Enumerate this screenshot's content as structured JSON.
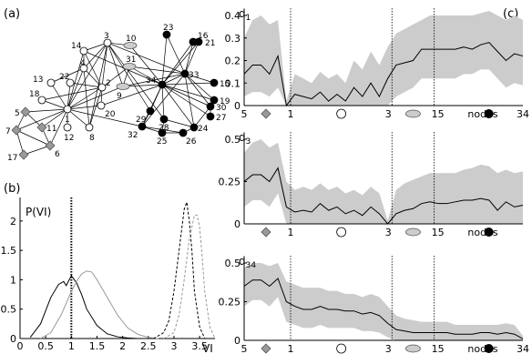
{
  "panel_labels": {
    "a": "(a)",
    "b": "(b)",
    "c": "(c)"
  },
  "network": {
    "nodes": [
      {
        "id": "1",
        "label": "1",
        "color": "#ffffff",
        "shape": "circle"
      },
      {
        "id": "2",
        "label": "2",
        "color": "#ffffff",
        "shape": "circle"
      },
      {
        "id": "3",
        "label": "3",
        "color": "#ffffff",
        "shape": "circle"
      },
      {
        "id": "4",
        "label": "4",
        "color": "#ffffff",
        "shape": "circle"
      },
      {
        "id": "5",
        "label": "5",
        "color": "#999999",
        "shape": "diamond"
      },
      {
        "id": "6",
        "label": "6",
        "color": "#999999",
        "shape": "diamond"
      },
      {
        "id": "7",
        "label": "7",
        "color": "#999999",
        "shape": "diamond"
      },
      {
        "id": "8",
        "label": "8",
        "color": "#ffffff",
        "shape": "circle"
      },
      {
        "id": "9",
        "label": "9",
        "color": "#cccccc",
        "shape": "ellipse"
      },
      {
        "id": "10",
        "label": "10",
        "color": "#cccccc",
        "shape": "ellipse"
      },
      {
        "id": "11",
        "label": "11",
        "color": "#999999",
        "shape": "diamond"
      },
      {
        "id": "12",
        "label": "12",
        "color": "#ffffff",
        "shape": "circle"
      },
      {
        "id": "13",
        "label": "13",
        "color": "#ffffff",
        "shape": "circle"
      },
      {
        "id": "14",
        "label": "14",
        "color": "#ffffff",
        "shape": "circle"
      },
      {
        "id": "15",
        "label": "15",
        "color": "#000000",
        "shape": "circle"
      },
      {
        "id": "16",
        "label": "16",
        "color": "#000000",
        "shape": "circle"
      },
      {
        "id": "17",
        "label": "17",
        "color": "#999999",
        "shape": "diamond"
      },
      {
        "id": "18",
        "label": "18",
        "color": "#ffffff",
        "shape": "circle"
      },
      {
        "id": "19",
        "label": "19",
        "color": "#000000",
        "shape": "circle"
      },
      {
        "id": "20",
        "label": "20",
        "color": "#ffffff",
        "shape": "circle"
      },
      {
        "id": "21",
        "label": "21",
        "color": "#000000",
        "shape": "circle"
      },
      {
        "id": "22",
        "label": "22",
        "color": "#ffffff",
        "shape": "circle"
      },
      {
        "id": "23",
        "label": "23",
        "color": "#000000",
        "shape": "circle"
      },
      {
        "id": "24",
        "label": "24",
        "color": "#000000",
        "shape": "circle"
      },
      {
        "id": "25",
        "label": "25",
        "color": "#000000",
        "shape": "circle"
      },
      {
        "id": "26",
        "label": "26",
        "color": "#000000",
        "shape": "circle"
      },
      {
        "id": "27",
        "label": "27",
        "color": "#000000",
        "shape": "circle"
      },
      {
        "id": "28",
        "label": "28",
        "color": "#000000",
        "shape": "circle"
      },
      {
        "id": "29",
        "label": "29",
        "color": "#000000",
        "shape": "circle"
      },
      {
        "id": "30",
        "label": "30",
        "color": "#000000",
        "shape": "circle"
      },
      {
        "id": "31",
        "label": "31",
        "color": "#cccccc",
        "shape": "ellipse"
      },
      {
        "id": "32",
        "label": "32",
        "color": "#000000",
        "shape": "circle"
      },
      {
        "id": "33",
        "label": "33",
        "color": "#000000",
        "shape": "circle"
      },
      {
        "id": "34",
        "label": "34",
        "color": "#000000",
        "shape": "circle"
      }
    ],
    "edges": [
      [
        "1",
        "2"
      ],
      [
        "1",
        "3"
      ],
      [
        "1",
        "4"
      ],
      [
        "1",
        "5"
      ],
      [
        "1",
        "6"
      ],
      [
        "1",
        "7"
      ],
      [
        "1",
        "8"
      ],
      [
        "1",
        "9"
      ],
      [
        "1",
        "11"
      ],
      [
        "1",
        "12"
      ],
      [
        "1",
        "13"
      ],
      [
        "1",
        "14"
      ],
      [
        "1",
        "18"
      ],
      [
        "1",
        "20"
      ],
      [
        "1",
        "22"
      ],
      [
        "1",
        "32"
      ],
      [
        "2",
        "3"
      ],
      [
        "2",
        "4"
      ],
      [
        "2",
        "8"
      ],
      [
        "2",
        "14"
      ],
      [
        "2",
        "18"
      ],
      [
        "2",
        "20"
      ],
      [
        "2",
        "22"
      ],
      [
        "2",
        "31"
      ],
      [
        "3",
        "4"
      ],
      [
        "3",
        "8"
      ],
      [
        "3",
        "9"
      ],
      [
        "3",
        "10"
      ],
      [
        "3",
        "14"
      ],
      [
        "3",
        "28"
      ],
      [
        "3",
        "29"
      ],
      [
        "3",
        "33"
      ],
      [
        "4",
        "8"
      ],
      [
        "4",
        "13"
      ],
      [
        "4",
        "14"
      ],
      [
        "5",
        "7"
      ],
      [
        "5",
        "11"
      ],
      [
        "6",
        "7"
      ],
      [
        "6",
        "11"
      ],
      [
        "6",
        "17"
      ],
      [
        "7",
        "17"
      ],
      [
        "9",
        "31"
      ],
      [
        "9",
        "33"
      ],
      [
        "9",
        "34"
      ],
      [
        "10",
        "34"
      ],
      [
        "14",
        "34"
      ],
      [
        "15",
        "33"
      ],
      [
        "15",
        "34"
      ],
      [
        "16",
        "33"
      ],
      [
        "16",
        "34"
      ],
      [
        "19",
        "33"
      ],
      [
        "19",
        "34"
      ],
      [
        "20",
        "34"
      ],
      [
        "21",
        "33"
      ],
      [
        "21",
        "34"
      ],
      [
        "23",
        "33"
      ],
      [
        "23",
        "34"
      ],
      [
        "24",
        "26"
      ],
      [
        "24",
        "28"
      ],
      [
        "24",
        "30"
      ],
      [
        "24",
        "33"
      ],
      [
        "24",
        "34"
      ],
      [
        "25",
        "26"
      ],
      [
        "25",
        "28"
      ],
      [
        "25",
        "32"
      ],
      [
        "26",
        "32"
      ],
      [
        "27",
        "30"
      ],
      [
        "27",
        "34"
      ],
      [
        "28",
        "34"
      ],
      [
        "29",
        "32"
      ],
      [
        "29",
        "34"
      ],
      [
        "30",
        "33"
      ],
      [
        "30",
        "34"
      ],
      [
        "31",
        "33"
      ],
      [
        "31",
        "34"
      ],
      [
        "32",
        "33"
      ],
      [
        "32",
        "34"
      ],
      [
        "33",
        "34"
      ]
    ]
  },
  "chart_data": [
    {
      "type": "line",
      "panel": "b",
      "ylabel": "P(VI)",
      "xlabel": "VI",
      "xlim": [
        0,
        3.8
      ],
      "ylim": [
        0,
        2.4
      ],
      "x_ticks": [
        "0",
        "0.5",
        "1",
        "1.5",
        "2",
        "2.5",
        "3",
        "3.5"
      ],
      "y_ticks": [
        "0",
        "0.5",
        "1",
        "1.5",
        "2"
      ],
      "reference_line_x": 1,
      "series": [
        {
          "style": "solid-black",
          "x": [
            0.2,
            0.4,
            0.6,
            0.75,
            0.85,
            0.9,
            1.0,
            1.1,
            1.2,
            1.3,
            1.5,
            1.7,
            1.9,
            2.1,
            2.3
          ],
          "y": [
            0.02,
            0.25,
            0.7,
            0.92,
            0.97,
            0.9,
            1.07,
            0.95,
            0.75,
            0.5,
            0.22,
            0.08,
            0.03,
            0.01,
            0.0
          ]
        },
        {
          "style": "solid-gray",
          "x": [
            0.4,
            0.6,
            0.8,
            1.0,
            1.1,
            1.2,
            1.3,
            1.4,
            1.5,
            1.7,
            1.9,
            2.1,
            2.3,
            2.5,
            2.7
          ],
          "y": [
            0.0,
            0.1,
            0.4,
            0.8,
            0.97,
            1.1,
            1.15,
            1.13,
            1.0,
            0.7,
            0.4,
            0.18,
            0.07,
            0.02,
            0.0
          ]
        },
        {
          "style": "dashed-black",
          "x": [
            2.6,
            2.8,
            2.9,
            3.0,
            3.1,
            3.2,
            3.25,
            3.3,
            3.35,
            3.4,
            3.5,
            3.6
          ],
          "y": [
            0.0,
            0.1,
            0.3,
            0.8,
            1.5,
            2.2,
            2.32,
            2.0,
            1.5,
            0.8,
            0.2,
            0.0
          ]
        },
        {
          "style": "dashed-gray",
          "x": [
            2.8,
            3.0,
            3.1,
            3.2,
            3.3,
            3.4,
            3.45,
            3.5,
            3.55,
            3.6,
            3.7,
            3.8
          ],
          "y": [
            0.0,
            0.1,
            0.4,
            1.0,
            1.7,
            2.1,
            2.1,
            1.9,
            1.4,
            0.8,
            0.2,
            0.0
          ]
        }
      ]
    },
    {
      "type": "area",
      "panel": "c",
      "subpanels": [
        {
          "ylabel": "d",
          "ylabel_sub": "1",
          "ylim": [
            0,
            0.4
          ],
          "y_ticks": [
            "0",
            "0.1",
            "0.2",
            "0.3",
            "0.4"
          ],
          "mean": [
            0.14,
            0.18,
            0.18,
            0.14,
            0.22,
            0.0,
            0.05,
            0.04,
            0.03,
            0.06,
            0.02,
            0.05,
            0.02,
            0.08,
            0.04,
            0.1,
            0.04,
            0.12,
            0.18,
            0.19,
            0.2,
            0.25,
            0.25,
            0.25,
            0.25,
            0.25,
            0.26,
            0.25,
            0.27,
            0.28,
            0.24,
            0.2,
            0.23,
            0.22
          ],
          "upper": [
            0.3,
            0.38,
            0.4,
            0.36,
            0.38,
            0.02,
            0.14,
            0.12,
            0.1,
            0.15,
            0.12,
            0.14,
            0.1,
            0.2,
            0.16,
            0.24,
            0.18,
            0.26,
            0.32,
            0.34,
            0.36,
            0.38,
            0.4,
            0.4,
            0.4,
            0.4,
            0.4,
            0.4,
            0.41,
            0.42,
            0.4,
            0.38,
            0.4,
            0.38
          ],
          "lower": [
            0.04,
            0.06,
            0.06,
            0.04,
            0.08,
            0.0,
            0.0,
            0.0,
            0.0,
            0.0,
            0.0,
            0.0,
            0.0,
            0.0,
            0.0,
            0.0,
            0.0,
            0.0,
            0.04,
            0.06,
            0.08,
            0.12,
            0.12,
            0.12,
            0.12,
            0.12,
            0.14,
            0.14,
            0.16,
            0.16,
            0.12,
            0.08,
            0.1,
            0.09
          ]
        },
        {
          "ylabel": "d",
          "ylabel_sub": "3",
          "ylim": [
            0,
            0.5
          ],
          "y_ticks": [
            "0",
            "0.25",
            "0.5"
          ],
          "mean": [
            0.25,
            0.29,
            0.29,
            0.25,
            0.33,
            0.1,
            0.07,
            0.08,
            0.07,
            0.12,
            0.08,
            0.1,
            0.06,
            0.08,
            0.05,
            0.1,
            0.06,
            0.0,
            0.06,
            0.08,
            0.09,
            0.12,
            0.13,
            0.12,
            0.12,
            0.13,
            0.14,
            0.14,
            0.15,
            0.14,
            0.08,
            0.13,
            0.1,
            0.11
          ],
          "upper": [
            0.42,
            0.48,
            0.5,
            0.45,
            0.48,
            0.25,
            0.2,
            0.22,
            0.2,
            0.24,
            0.2,
            0.22,
            0.18,
            0.2,
            0.17,
            0.22,
            0.18,
            0.02,
            0.2,
            0.24,
            0.26,
            0.28,
            0.3,
            0.3,
            0.3,
            0.3,
            0.32,
            0.33,
            0.35,
            0.34,
            0.3,
            0.32,
            0.3,
            0.31
          ],
          "lower": [
            0.1,
            0.14,
            0.14,
            0.1,
            0.18,
            0.0,
            0.0,
            0.0,
            0.0,
            0.0,
            0.0,
            0.0,
            0.0,
            0.0,
            0.0,
            0.0,
            0.0,
            0.0,
            0.0,
            0.0,
            0.0,
            0.0,
            0.0,
            0.0,
            0.0,
            0.0,
            0.0,
            0.0,
            0.0,
            0.0,
            0.0,
            0.0,
            0.0,
            0.0
          ]
        },
        {
          "ylabel": "d",
          "ylabel_sub": "34",
          "ylim": [
            0,
            0.5
          ],
          "y_ticks": [
            "0",
            "0.25",
            "0.5"
          ],
          "mean": [
            0.35,
            0.39,
            0.39,
            0.35,
            0.4,
            0.25,
            0.22,
            0.2,
            0.2,
            0.22,
            0.2,
            0.2,
            0.19,
            0.19,
            0.17,
            0.18,
            0.16,
            0.11,
            0.07,
            0.06,
            0.05,
            0.05,
            0.05,
            0.05,
            0.05,
            0.04,
            0.04,
            0.04,
            0.05,
            0.05,
            0.04,
            0.05,
            0.04,
            0.01
          ],
          "upper": [
            0.47,
            0.5,
            0.5,
            0.48,
            0.5,
            0.38,
            0.36,
            0.34,
            0.34,
            0.34,
            0.32,
            0.32,
            0.3,
            0.3,
            0.28,
            0.3,
            0.28,
            0.22,
            0.16,
            0.14,
            0.13,
            0.12,
            0.12,
            0.12,
            0.12,
            0.1,
            0.1,
            0.1,
            0.1,
            0.1,
            0.1,
            0.11,
            0.1,
            0.03
          ],
          "lower": [
            0.22,
            0.26,
            0.26,
            0.22,
            0.28,
            0.12,
            0.1,
            0.08,
            0.08,
            0.1,
            0.08,
            0.08,
            0.08,
            0.08,
            0.06,
            0.06,
            0.05,
            0.02,
            0.0,
            0.0,
            0.0,
            0.0,
            0.0,
            0.0,
            0.0,
            0.0,
            0.0,
            0.0,
            0.0,
            0.0,
            0.0,
            0.0,
            0.0,
            0.0
          ]
        }
      ],
      "x_labels": {
        "start": "5",
        "v1": "1",
        "v3": "3",
        "v15": "15",
        "end": "34",
        "xlabel": "nodes"
      },
      "dividers": [
        5.5,
        17.5,
        22.5
      ],
      "band_color": "#cccccc"
    }
  ]
}
